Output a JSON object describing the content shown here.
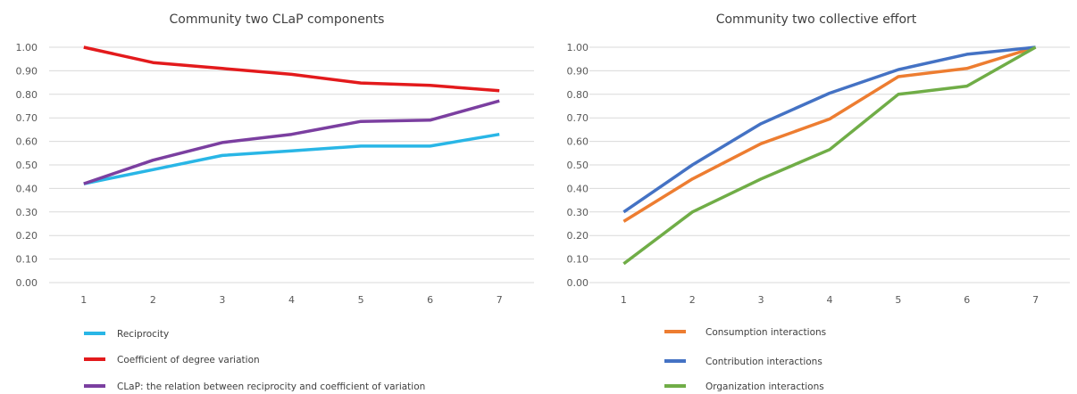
{
  "chart_data": [
    {
      "type": "line",
      "title": "Community two CLaP components",
      "xlabel": "",
      "ylabel": "",
      "categories": [
        "1",
        "2",
        "3",
        "4",
        "5",
        "6",
        "7"
      ],
      "ylim": [
        0,
        1
      ],
      "yticks": [
        "0.00",
        "0.10",
        "0.20",
        "0.30",
        "0.40",
        "0.50",
        "0.60",
        "0.70",
        "0.80",
        "0.90",
        "1.00"
      ],
      "grid": true,
      "legend_position": "bottom",
      "series": [
        {
          "name": "Reciprocity",
          "color": "#29b6e6",
          "values": [
            0.42,
            0.48,
            0.54,
            0.56,
            0.58,
            0.58,
            0.63
          ]
        },
        {
          "name": "Coefficient of degree variation",
          "color": "#e31a1c",
          "values": [
            1.0,
            0.935,
            0.91,
            0.885,
            0.848,
            0.838,
            0.815
          ]
        },
        {
          "name": "CLaP: the relation between reciprocity and coefficient of variation",
          "color": "#7b3fa0",
          "values": [
            0.42,
            0.52,
            0.595,
            0.63,
            0.685,
            0.69,
            0.772
          ]
        }
      ]
    },
    {
      "type": "line",
      "title": "Community two collective effort",
      "xlabel": "",
      "ylabel": "",
      "categories": [
        "1",
        "2",
        "3",
        "4",
        "5",
        "6",
        "7"
      ],
      "ylim": [
        0,
        1
      ],
      "yticks": [
        "0.00",
        "0.10",
        "0.20",
        "0.30",
        "0.40",
        "0.50",
        "0.60",
        "0.70",
        "0.80",
        "0.90",
        "1.00"
      ],
      "grid": true,
      "legend_position": "bottom",
      "series": [
        {
          "name": "Consumption interactions",
          "color": "#ed7d31",
          "values": [
            0.26,
            0.44,
            0.59,
            0.695,
            0.875,
            0.91,
            1.0
          ]
        },
        {
          "name": "Contribution interactions",
          "color": "#4472c4",
          "values": [
            0.3,
            0.5,
            0.675,
            0.805,
            0.905,
            0.97,
            1.0
          ]
        },
        {
          "name": "Organization interactions",
          "color": "#70ad47",
          "values": [
            0.08,
            0.3,
            0.44,
            0.565,
            0.8,
            0.835,
            1.0
          ]
        }
      ]
    }
  ]
}
